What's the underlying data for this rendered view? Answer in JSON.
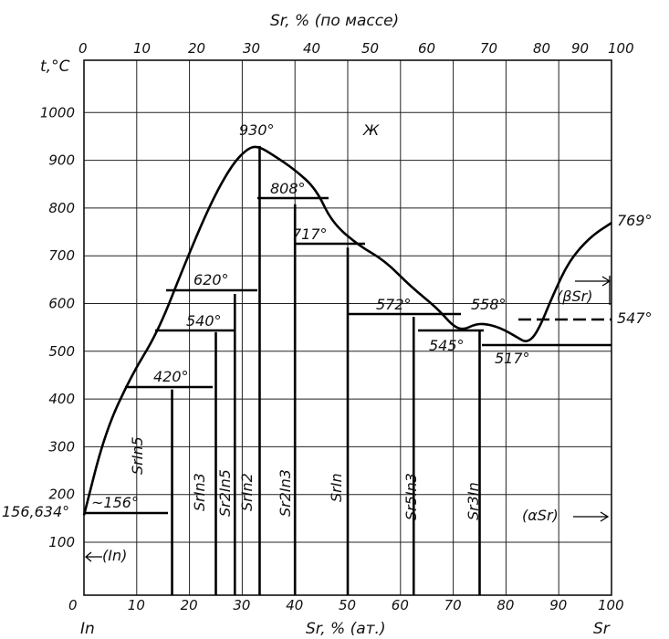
{
  "top_axis": {
    "title": "Sr, % (по массе)",
    "ticks": [
      "0",
      "10",
      "20",
      "30",
      "40",
      "50",
      "60",
      "70",
      "80",
      "90",
      "100"
    ]
  },
  "bottom_axis": {
    "title": "Sr, %  (ат.)",
    "ticks": [
      "0",
      "10",
      "20",
      "30",
      "40",
      "50",
      "60",
      "70",
      "80",
      "90",
      "100"
    ],
    "left_element": "In",
    "right_element": "Sr"
  },
  "y_axis": {
    "title": "t,°C",
    "ticks": [
      "100",
      "200",
      "300",
      "400",
      "500",
      "600",
      "700",
      "800",
      "900",
      "1000"
    ]
  },
  "annotations": {
    "liquid": "Ж",
    "t930": "930°",
    "t808": "808°",
    "t717": "717°",
    "t620": "620°",
    "t540": "540°",
    "t420": "420°",
    "t572": "572°",
    "t558": "558°",
    "t545": "545°",
    "t517": "517°",
    "t769": "769°",
    "t547": "547°",
    "t156": "~156°",
    "t156634": "156,634°",
    "beta_sr": "(βSr)",
    "alpha_sr": "(αSr)",
    "in_phase": "(In)"
  },
  "phases": [
    "SrIn5",
    "SrIn3",
    "Sr2In5",
    "SrIn2",
    "Sr2In3",
    "SrIn",
    "Sr5In3",
    "Sr3In"
  ],
  "chart_data": {
    "type": "line",
    "title": "",
    "xlabel": "Sr, %  (ат.)",
    "ylabel": "t,°C",
    "xlim": [
      0,
      100
    ],
    "ylim": [
      0,
      1100
    ],
    "secondary_x_axis": "Sr, % (по массе)",
    "series": [
      {
        "values": [
          [
            0,
            156.6
          ],
          [
            4,
            330
          ],
          [
            9,
            450
          ],
          [
            14,
            540
          ],
          [
            19,
            680
          ],
          [
            24,
            810
          ],
          [
            28,
            890
          ],
          [
            31,
            925
          ],
          [
            33,
            930
          ],
          [
            36,
            910
          ],
          [
            40,
            880
          ],
          [
            44,
            840
          ],
          [
            47,
            770
          ],
          [
            52,
            722
          ],
          [
            57,
            690
          ],
          [
            62,
            635
          ],
          [
            67,
            590
          ],
          [
            70,
            552
          ],
          [
            72,
            545
          ],
          [
            74,
            556
          ],
          [
            76,
            558
          ],
          [
            79,
            549
          ],
          [
            82,
            530
          ],
          [
            84,
            517
          ],
          [
            86,
            540
          ],
          [
            89,
            620
          ],
          [
            92,
            690
          ],
          [
            96,
            740
          ],
          [
            100,
            769
          ]
        ]
      }
    ],
    "invariant_lines": [
      {
        "t": 930,
        "x": [
          33,
          33
        ]
      },
      {
        "t": 808,
        "x": [
          33,
          45
        ]
      },
      {
        "t": 717,
        "x": [
          40,
          52
        ]
      },
      {
        "t": 620,
        "x": [
          16,
          33
        ]
      },
      {
        "t": 540,
        "x": [
          14,
          25
        ]
      },
      {
        "t": 420,
        "x": [
          8,
          25
        ]
      },
      {
        "t": 572,
        "x": [
          50,
          70
        ]
      },
      {
        "t": 545,
        "x": [
          62.5,
          75
        ]
      },
      {
        "t": 517,
        "x": [
          75,
          100
        ]
      },
      {
        "t": 547,
        "x": [
          82,
          100
        ]
      },
      {
        "t": 156.6,
        "x": [
          0,
          16
        ]
      }
    ],
    "compounds": [
      {
        "name": "SrIn5",
        "x": 16.7,
        "t_top": 420
      },
      {
        "name": "SrIn3",
        "x": 25,
        "t_top": 540
      },
      {
        "name": "Sr2In5",
        "x": 28.6,
        "t_top": 620
      },
      {
        "name": "SrIn2",
        "x": 33.3,
        "t_top": 930
      },
      {
        "name": "Sr2In3",
        "x": 40,
        "t_top": 808
      },
      {
        "name": "SrIn",
        "x": 50,
        "t_top": 717
      },
      {
        "name": "Sr5In3",
        "x": 62.5,
        "t_top": 572
      },
      {
        "name": "Sr3In",
        "x": 75,
        "t_top": 545
      }
    ],
    "grid": true
  }
}
